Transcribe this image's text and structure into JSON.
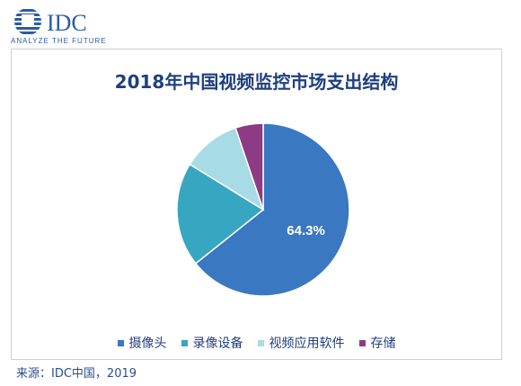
{
  "logo": {
    "wordmark": "IDC",
    "tagline": "ANALYZE THE FUTURE"
  },
  "chart_data": {
    "type": "pie",
    "title": "2018年中国视频监控市场支出结构",
    "slices": [
      {
        "label": "摄像头",
        "value": 64.3,
        "color": "#3a78c1",
        "data_label": "64.3%"
      },
      {
        "label": "录像设备",
        "value": 19.5,
        "color": "#36a6c1",
        "data_label": ""
      },
      {
        "label": "视频应用软件",
        "value": 11.0,
        "color": "#a7dbe6",
        "data_label": ""
      },
      {
        "label": "存储",
        "value": 5.2,
        "color": "#8c3b84",
        "data_label": ""
      }
    ],
    "legend_position": "bottom"
  },
  "footer": {
    "source": "来源：IDC中国，2019"
  }
}
